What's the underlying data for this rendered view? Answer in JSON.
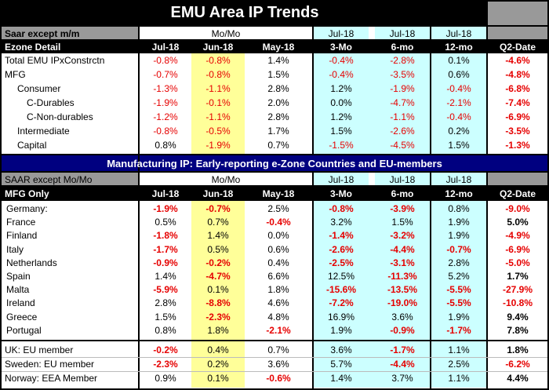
{
  "title": "EMU Area IP Trends",
  "colors": {
    "red": "#e60000",
    "yellow": "#ffff99",
    "cyan": "#ccffff",
    "navy": "#000080",
    "gray": "#999999"
  },
  "table1": {
    "subtitle": "Saar except m/m",
    "group_mom": "Mo/Mo",
    "group_jul_a": "Jul-18",
    "group_jul_b": "Jul-18",
    "group_jul_c": "Jul-18",
    "col_label": "Ezone Detail",
    "headers": [
      "Jul-18",
      "Jun-18",
      "May-18",
      "3-Mo",
      "6-mo",
      "12-mo",
      "Q2-Date"
    ],
    "rows": [
      {
        "label": "Total EMU IPxConstrctn",
        "values": [
          "-0.8%",
          "-0.8%",
          "1.4%",
          "-0.4%",
          "-2.8%",
          "0.1%",
          "-4.6%"
        ]
      },
      {
        "label": "MFG",
        "values": [
          "-0.7%",
          "-0.8%",
          "1.5%",
          "-0.4%",
          "-3.5%",
          "0.6%",
          "-4.8%"
        ]
      },
      {
        "label": "Consumer",
        "values": [
          "-1.3%",
          "-1.1%",
          "2.8%",
          "1.2%",
          "-1.9%",
          "-0.4%",
          "-6.8%"
        ]
      },
      {
        "label": "C-Durables",
        "values": [
          "-1.9%",
          "-0.1%",
          "2.0%",
          "0.0%",
          "-4.7%",
          "-2.1%",
          "-7.4%"
        ]
      },
      {
        "label": "C-Non-durables",
        "values": [
          "-1.2%",
          "-1.1%",
          "2.8%",
          "1.2%",
          "-1.1%",
          "-0.4%",
          "-6.9%"
        ]
      },
      {
        "label": "Intermediate",
        "values": [
          "-0.8%",
          "-0.5%",
          "1.7%",
          "1.5%",
          "-2.6%",
          "0.2%",
          "-3.5%"
        ]
      },
      {
        "label": "Capital",
        "values": [
          "0.8%",
          "-1.9%",
          "0.7%",
          "-1.5%",
          "-4.5%",
          "1.5%",
          "-1.3%"
        ]
      }
    ]
  },
  "table2": {
    "banner": "Manufacturing IP: Early-reporting e-Zone Countries and EU-members",
    "subtitle": "SAAR except Mo/Mo",
    "group_mom": "Mo/Mo",
    "group_jul_a": "Jul-18",
    "group_jul_b": "Jul-18",
    "group_jul_c": "Jul-18",
    "col_label": "MFG Only",
    "headers": [
      "Jul-18",
      "Jun-18",
      "May-18",
      "3-Mo",
      "6-mo",
      "12-mo",
      "Q2-Date"
    ],
    "rows": [
      {
        "label": "Germany:",
        "values": [
          "-1.9%",
          "-0.7%",
          "2.5%",
          "-0.8%",
          "-3.9%",
          "0.8%",
          "-9.0%"
        ]
      },
      {
        "label": "France",
        "values": [
          "0.5%",
          "0.7%",
          "-0.4%",
          "3.2%",
          "1.5%",
          "1.9%",
          "5.0%"
        ]
      },
      {
        "label": "Finland",
        "values": [
          "-1.8%",
          "1.4%",
          "0.0%",
          "-1.4%",
          "-3.2%",
          "1.9%",
          "-4.9%"
        ]
      },
      {
        "label": "Italy",
        "values": [
          "-1.7%",
          "0.5%",
          "0.6%",
          "-2.6%",
          "-4.4%",
          "-0.7%",
          "-6.9%"
        ]
      },
      {
        "label": "Netherlands",
        "values": [
          "-0.9%",
          "-0.2%",
          "0.4%",
          "-2.5%",
          "-3.1%",
          "2.8%",
          "-5.0%"
        ]
      },
      {
        "label": "Spain",
        "values": [
          "1.4%",
          "-4.7%",
          "6.6%",
          "12.5%",
          "-11.3%",
          "5.2%",
          "1.7%"
        ]
      },
      {
        "label": "Malta",
        "values": [
          "-5.9%",
          "0.1%",
          "1.8%",
          "-15.6%",
          "-13.5%",
          "-5.5%",
          "-27.9%"
        ]
      },
      {
        "label": "Ireland",
        "values": [
          "2.8%",
          "-8.8%",
          "4.6%",
          "-7.2%",
          "-19.0%",
          "-5.5%",
          "-10.8%"
        ]
      },
      {
        "label": "Greece",
        "values": [
          "1.5%",
          "-2.3%",
          "4.8%",
          "16.9%",
          "3.6%",
          "1.9%",
          "9.4%"
        ]
      },
      {
        "label": "Portugal",
        "values": [
          "0.8%",
          "1.8%",
          "-2.1%",
          "1.9%",
          "-0.9%",
          "-1.7%",
          "7.8%"
        ]
      }
    ],
    "eu_rows": [
      {
        "label": "UK: EU member",
        "values": [
          "-0.2%",
          "0.4%",
          "0.7%",
          "3.6%",
          "-1.7%",
          "1.1%",
          "1.8%"
        ]
      },
      {
        "label": "Sweden: EU member",
        "values": [
          "-2.3%",
          "0.2%",
          "3.6%",
          "5.7%",
          "-4.4%",
          "2.5%",
          "-6.2%"
        ]
      },
      {
        "label": "Norway: EEA Member",
        "values": [
          "0.9%",
          "0.1%",
          "-0.6%",
          "1.4%",
          "3.7%",
          "1.1%",
          "4.4%"
        ]
      }
    ]
  }
}
